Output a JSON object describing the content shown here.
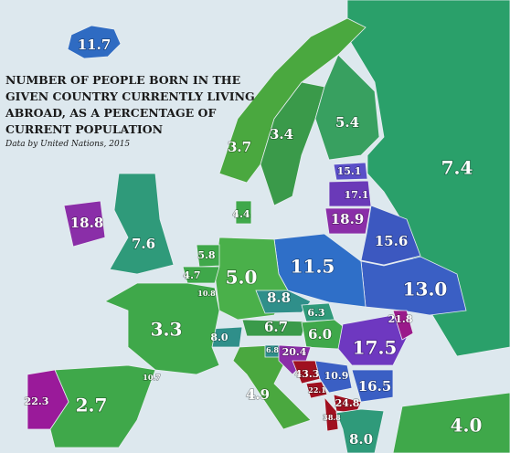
{
  "title": [
    "NUMBER OF PEOPLE BORN IN THE",
    "GIVEN COUNTRY CURRENTLY LIVING",
    "ABROAD, AS A PERCENTAGE OF",
    "CURRENT POPULATION"
  ],
  "source": "Data by United Nations, 2015",
  "labels": [
    "11.7",
    "3.7",
    "3.4",
    "5.4",
    "7.4",
    "15.1",
    "17.1",
    "18.9",
    "18.8",
    "7.6",
    "4.4",
    "5.8",
    "4.7",
    "10.8",
    "5.0",
    "11.5",
    "15.6",
    "13.0",
    "8.8",
    "6.3",
    "6.7",
    "6.0",
    "8.0",
    "21.8",
    "17.5",
    "3.3",
    "6.8",
    "20.4",
    "43.3",
    "10.9",
    "22.1",
    "16.5",
    "24.8",
    "38.8",
    "10.7",
    "22.3",
    "2.7",
    "4.9",
    "8.0",
    "4.0"
  ]
}
